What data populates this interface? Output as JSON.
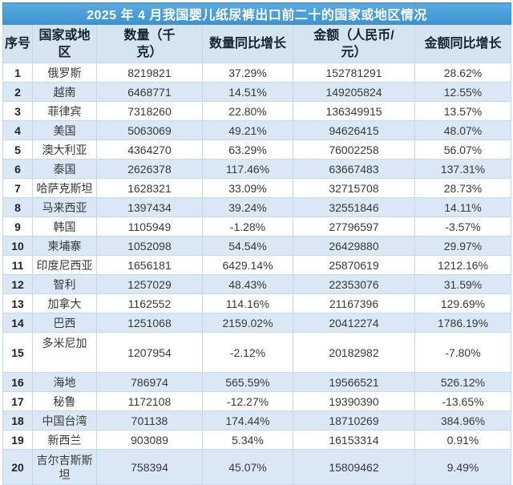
{
  "chart_data": {
    "type": "table",
    "title": "2025 年 4 月我国婴儿纸尿裤出口前二十的国家或地区情况",
    "columns": [
      "序号",
      "国家或地区",
      "数量（千克）",
      "数量同比增长",
      "金额（人民币/元）",
      "金额同比增长"
    ],
    "rows": [
      [
        "1",
        "俄罗斯",
        "8219821",
        "37.29%",
        "152781291",
        "28.62%"
      ],
      [
        "2",
        "越南",
        "6468771",
        "14.51%",
        "149205824",
        "12.55%"
      ],
      [
        "3",
        "菲律宾",
        "7318260",
        "22.80%",
        "136349915",
        "13.57%"
      ],
      [
        "4",
        "美国",
        "5063069",
        "49.21%",
        "94626415",
        "48.07%"
      ],
      [
        "5",
        "澳大利亚",
        "4364270",
        "63.29%",
        "76002258",
        "56.07%"
      ],
      [
        "6",
        "泰国",
        "2626378",
        "117.46%",
        "63667483",
        "137.31%"
      ],
      [
        "7",
        "哈萨克斯坦",
        "1628321",
        "33.09%",
        "32715708",
        "28.73%"
      ],
      [
        "8",
        "马来西亚",
        "1397434",
        "39.24%",
        "32551846",
        "14.11%"
      ],
      [
        "9",
        "韩国",
        "1105949",
        "-1.28%",
        "27796597",
        "-3.57%"
      ],
      [
        "10",
        "柬埔寨",
        "1052098",
        "54.54%",
        "26429880",
        "29.97%"
      ],
      [
        "11",
        "印度尼西亚",
        "1656181",
        "6429.14%",
        "25870619",
        "1212.16%"
      ],
      [
        "12",
        "智利",
        "1257029",
        "48.43%",
        "22353076",
        "31.59%"
      ],
      [
        "13",
        "加拿大",
        "1162552",
        "114.16%",
        "21167396",
        "129.69%"
      ],
      [
        "14",
        "巴西",
        "1251068",
        "2159.02%",
        "20412274",
        "1786.19%"
      ],
      [
        "15",
        "多米尼加",
        "1207954",
        "-2.12%",
        "20182982",
        "-7.80%"
      ],
      [
        "16",
        "海地",
        "786974",
        "565.59%",
        "19566521",
        "526.12%"
      ],
      [
        "17",
        "秘鲁",
        "1172108",
        "-12.27%",
        "19390390",
        "-13.65%"
      ],
      [
        "18",
        "中国台湾",
        "701138",
        "174.44%",
        "18710269",
        "384.96%"
      ],
      [
        "19",
        "新西兰",
        "903089",
        "5.34%",
        "16153314",
        "0.91%"
      ],
      [
        "20",
        "吉尔吉斯斯坦",
        "758394",
        "45.07%",
        "15809462",
        "9.49%"
      ]
    ]
  },
  "colors": {
    "title_bg": "#4aa0da",
    "title_bg_dark": "#3e93cf",
    "title_text": "#ffffff",
    "header_bg": "#d5e4f1",
    "band_bg": "#dae8f5",
    "row_bg": "#ffffff",
    "border": "#c3d8eb",
    "header_text": "#16222e",
    "body_text": "#38393b"
  }
}
